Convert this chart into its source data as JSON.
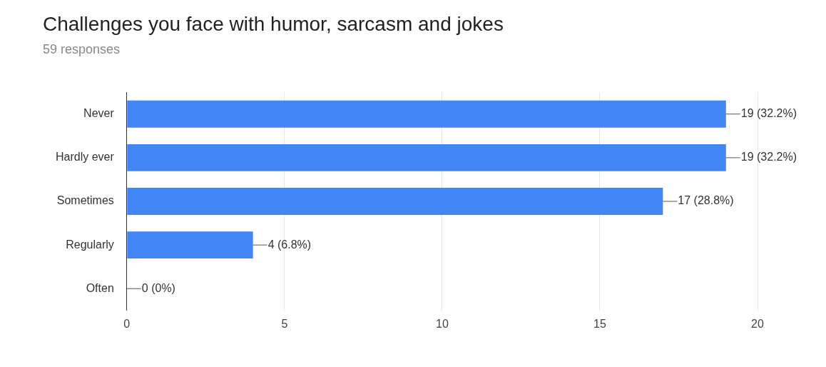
{
  "chart_data": {
    "type": "bar",
    "title": "Challenges you face with humor, sarcasm and jokes",
    "subtitle": "59 responses",
    "orientation": "horizontal",
    "categories": [
      "Never",
      "Hardly ever",
      "Sometimes",
      "Regularly",
      "Often"
    ],
    "values": [
      19,
      19,
      17,
      4,
      0
    ],
    "color": "#4285f4",
    "value_labels": [
      "19 (32.2%)",
      "19 (32.2%)",
      "17 (28.8%)",
      "4 (6.8%)",
      "0 (0%)"
    ],
    "xlim": [
      0,
      20
    ],
    "xticks": [
      0,
      5,
      10,
      15,
      20
    ],
    "grid": "x",
    "legend": false
  }
}
